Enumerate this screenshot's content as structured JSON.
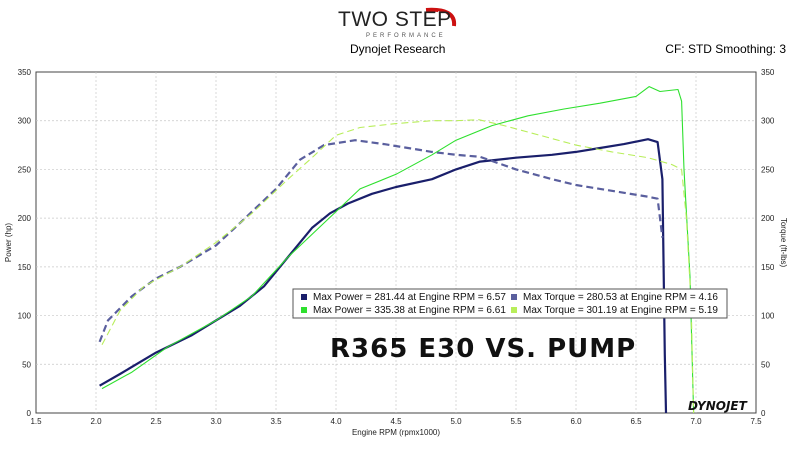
{
  "header": {
    "logo_text": "TWO STEP",
    "logo_subtext": "PERFORMANCE",
    "subtitle_left": "Dynojet Research",
    "subtitle_right": "CF: STD Smoothing: 3"
  },
  "colors": {
    "power_dark": "#1a1f6b",
    "torque_dark": "#5a5f9e",
    "power_green": "#2ee02e",
    "torque_lightgreen": "#b8ee5a",
    "plot_border": "#444444",
    "grid": "#c8c8c8",
    "dynojet_red": "#cc1111"
  },
  "overlay_text": "R365 E30 VS. PUMP",
  "watermark": "DYNOJET",
  "chart_data": {
    "type": "line",
    "xlabel": "Engine RPM (rpmx1000)",
    "ylabel_left": "Power (hp)",
    "ylabel_right": "Torque (ft-lbs)",
    "xlim": [
      1.5,
      7.5
    ],
    "ylim": [
      0,
      350
    ],
    "x_ticks": [
      1.5,
      2.0,
      2.5,
      3.0,
      3.5,
      4.0,
      4.5,
      5.0,
      5.5,
      6.0,
      6.5,
      7.0,
      7.5
    ],
    "y_ticks": [
      0,
      50,
      100,
      150,
      200,
      250,
      300,
      350
    ],
    "grid": true,
    "legend": {
      "placement": "center-right",
      "entries": [
        {
          "color_key": "power_dark",
          "text": "Max Power = 281.44 at Engine RPM = 6.57"
        },
        {
          "color_key": "torque_dark",
          "text": "Max Torque = 280.53 at Engine RPM = 4.16"
        },
        {
          "color_key": "power_green",
          "text": "Max Power = 335.38 at Engine RPM = 6.61"
        },
        {
          "color_key": "torque_lightgreen",
          "text": "Max Torque = 301.19 at Engine RPM = 5.19"
        }
      ]
    },
    "series": [
      {
        "color_key": "power_dark",
        "style": "solid",
        "width": 2.2,
        "x": [
          2.03,
          2.2,
          2.5,
          2.8,
          3.0,
          3.2,
          3.4,
          3.6,
          3.8,
          3.95,
          4.1,
          4.3,
          4.5,
          4.8,
          5.0,
          5.2,
          5.5,
          5.8,
          6.0,
          6.2,
          6.4,
          6.6,
          6.68,
          6.72,
          6.73,
          6.74,
          6.75
        ],
        "y": [
          28,
          40,
          62,
          80,
          95,
          110,
          130,
          160,
          190,
          205,
          215,
          225,
          232,
          240,
          250,
          258,
          262,
          265,
          268,
          272,
          276,
          281,
          278,
          240,
          150,
          60,
          0
        ]
      },
      {
        "color_key": "torque_dark",
        "style": "dashed",
        "width": 2.2,
        "x": [
          2.03,
          2.1,
          2.3,
          2.5,
          2.7,
          3.0,
          3.2,
          3.5,
          3.7,
          3.9,
          4.16,
          4.4,
          4.6,
          4.8,
          5.0,
          5.2,
          5.5,
          5.8,
          6.0,
          6.2,
          6.4,
          6.6,
          6.68,
          6.72
        ],
        "y": [
          73,
          95,
          120,
          138,
          150,
          172,
          195,
          230,
          260,
          275,
          280,
          276,
          272,
          268,
          265,
          263,
          250,
          240,
          234,
          230,
          226,
          222,
          220,
          180
        ]
      },
      {
        "color_key": "power_green",
        "style": "solid",
        "width": 1.1,
        "x": [
          2.05,
          2.3,
          2.6,
          3.0,
          3.3,
          3.6,
          3.9,
          4.2,
          4.5,
          4.8,
          5.0,
          5.3,
          5.6,
          5.9,
          6.2,
          6.5,
          6.61,
          6.7,
          6.85,
          6.88,
          6.9,
          6.95,
          6.98
        ],
        "y": [
          25,
          42,
          68,
          95,
          120,
          160,
          195,
          230,
          245,
          265,
          280,
          295,
          305,
          312,
          318,
          325,
          335,
          330,
          332,
          320,
          250,
          140,
          0
        ]
      },
      {
        "color_key": "torque_lightgreen",
        "style": "dashed",
        "width": 1.1,
        "x": [
          2.05,
          2.2,
          2.4,
          2.7,
          3.0,
          3.3,
          3.6,
          3.8,
          4.0,
          4.2,
          4.5,
          4.8,
          5.0,
          5.19,
          5.4,
          5.7,
          6.0,
          6.3,
          6.6,
          6.8,
          6.88,
          6.92,
          6.96,
          6.98
        ],
        "y": [
          70,
          105,
          130,
          150,
          175,
          205,
          240,
          262,
          285,
          293,
          297,
          300,
          300,
          301,
          295,
          285,
          275,
          268,
          262,
          255,
          250,
          200,
          110,
          0
        ]
      }
    ]
  }
}
